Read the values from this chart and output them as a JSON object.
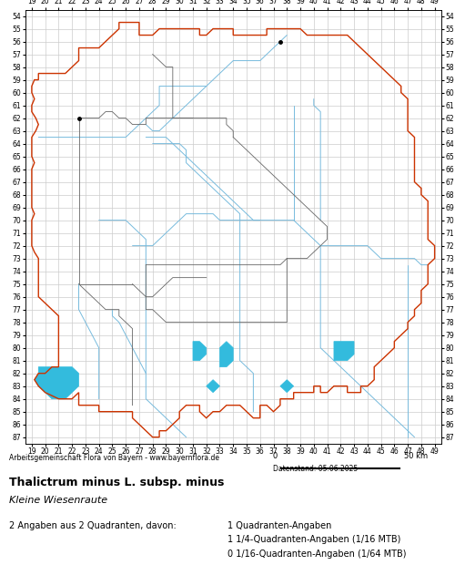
{
  "title": "Thalictrum minus L. subsp. minus",
  "subtitle": "Kleine Wiesenraute",
  "footer_left": "Arbeitsgemeinschaft Flora von Bayern - www.bayernflora.de",
  "footer_date": "Datenstand: 05.06.2025",
  "stats_line1": "2 Angaben aus 2 Quadranten, davon:",
  "stats_col2_line1": "1 Quadranten-Angaben",
  "stats_col2_line2": "1 1/4-Quadranten-Angaben (1/16 MTB)",
  "stats_col2_line3": "0 1/16-Quadranten-Angaben (1/64 MTB)",
  "x_ticks": [
    19,
    20,
    21,
    22,
    23,
    24,
    25,
    26,
    27,
    28,
    29,
    30,
    31,
    32,
    33,
    34,
    35,
    36,
    37,
    38,
    39,
    40,
    41,
    42,
    43,
    44,
    45,
    46,
    47,
    48,
    49
  ],
  "y_ticks": [
    54,
    55,
    56,
    57,
    58,
    59,
    60,
    61,
    62,
    63,
    64,
    65,
    66,
    67,
    68,
    69,
    70,
    71,
    72,
    73,
    74,
    75,
    76,
    77,
    78,
    79,
    80,
    81,
    82,
    83,
    84,
    85,
    86,
    87
  ],
  "x_min": 18.5,
  "x_max": 49.5,
  "y_min": 53.5,
  "y_max": 87.5,
  "grid_color": "#cccccc",
  "border_color_outer": "#cc3300",
  "border_color_inner": "#666666",
  "river_color": "#77bbdd",
  "lake_color": "#33bbdd",
  "background_color": "#ffffff",
  "map_bg": "#ffffff",
  "dot_color": "#000000"
}
